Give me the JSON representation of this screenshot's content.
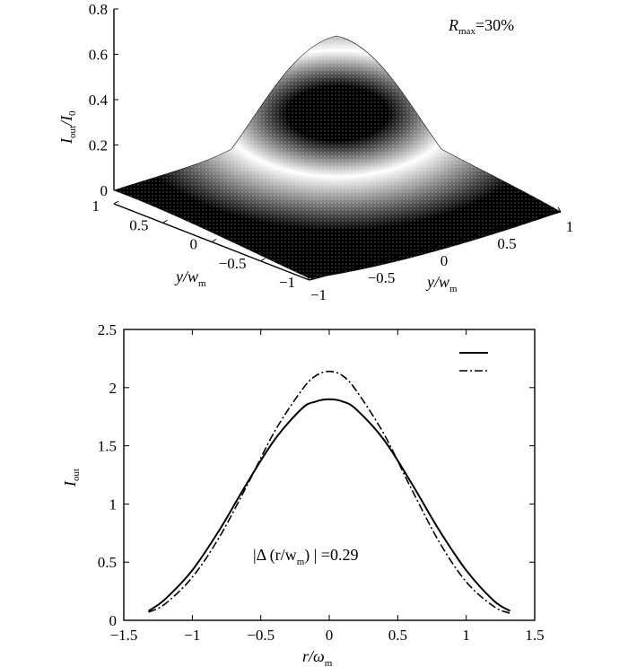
{
  "chart_data": [
    {
      "type": "surface",
      "annotation": {
        "prefix": "R",
        "sub": "max",
        "suffix": "=30%"
      },
      "zlabel": {
        "main": "I",
        "sub1": "out",
        "mid": "/I",
        "sub2": "0"
      },
      "xlabel": {
        "main": "y/w",
        "sub": "m"
      },
      "ylabel": {
        "main": "y/w",
        "sub": "m"
      },
      "zlim": [
        0,
        0.8
      ],
      "zticks": [
        "0",
        "0.2",
        "0.4",
        "0.6",
        "0.8"
      ],
      "xlim": [
        -1,
        1
      ],
      "ylim": [
        -1,
        1
      ],
      "xticks": [
        "−1",
        "−0.5",
        "0",
        "0.5",
        "1"
      ],
      "yticks": [
        "−1",
        "−0.5",
        "0",
        "0.5",
        "1"
      ],
      "peak": 0.67,
      "colormap": [
        "#000000",
        "#ffffff"
      ]
    },
    {
      "type": "line",
      "xlabel": {
        "main": "r/ω",
        "sub": "m"
      },
      "ylabel": {
        "main": "I",
        "sub": "out"
      },
      "xlim": [
        -1.5,
        1.5
      ],
      "ylim": [
        0,
        2.5
      ],
      "xticks": [
        "−1.5",
        "−1",
        "−0.5",
        "0",
        "0.5",
        "1",
        "1.5"
      ],
      "yticks": [
        "0",
        "0.5",
        "1",
        "1.5",
        "2",
        "2.5"
      ],
      "annotation": {
        "pre": "|Δ (r/w",
        "sub": "m",
        "post": ")  | =0.29"
      },
      "series": [
        {
          "style": "solid",
          "x": [
            -1.32,
            -1.2,
            -1.0,
            -0.8,
            -0.6,
            -0.4,
            -0.2,
            -0.1,
            0.0,
            0.1,
            0.2,
            0.4,
            0.6,
            0.8,
            1.0,
            1.2,
            1.32
          ],
          "y": [
            0.08,
            0.18,
            0.43,
            0.78,
            1.18,
            1.55,
            1.82,
            1.88,
            1.9,
            1.88,
            1.81,
            1.55,
            1.18,
            0.78,
            0.43,
            0.17,
            0.08
          ]
        },
        {
          "style": "dashdot",
          "x": [
            -1.32,
            -1.2,
            -1.0,
            -0.8,
            -0.6,
            -0.4,
            -0.2,
            -0.1,
            0.0,
            0.1,
            0.2,
            0.4,
            0.6,
            0.8,
            1.0,
            1.2,
            1.32
          ],
          "y": [
            0.07,
            0.14,
            0.37,
            0.72,
            1.16,
            1.62,
            1.98,
            2.1,
            2.14,
            2.1,
            1.97,
            1.6,
            1.13,
            0.68,
            0.33,
            0.12,
            0.06
          ]
        }
      ]
    }
  ]
}
